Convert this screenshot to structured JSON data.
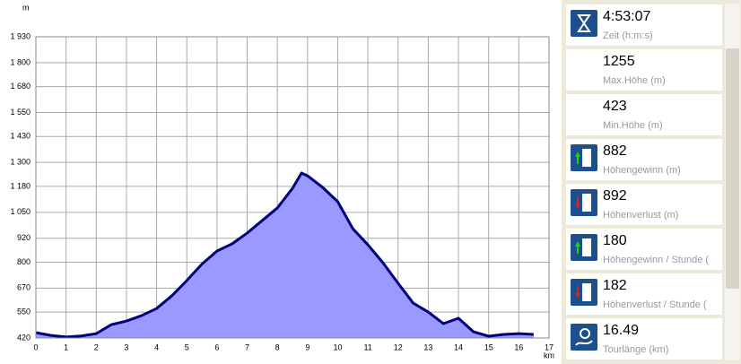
{
  "chart_data": {
    "type": "area",
    "y_unit": "m",
    "x_unit": "km",
    "x": [
      0,
      0.5,
      1,
      1.5,
      2,
      2.5,
      3,
      3.5,
      4,
      4.5,
      5,
      5.5,
      6,
      6.5,
      7,
      7.5,
      8,
      8.5,
      8.8,
      9,
      9.5,
      10,
      10.5,
      11,
      11.5,
      12,
      12.5,
      13,
      13.5,
      14,
      14.5,
      15,
      15.5,
      16,
      16.49
    ],
    "y": [
      447,
      433,
      425,
      430,
      442,
      487,
      505,
      532,
      568,
      631,
      708,
      790,
      856,
      892,
      946,
      1009,
      1072,
      1170,
      1247,
      1233,
      1175,
      1103,
      968,
      887,
      797,
      694,
      595,
      550,
      492,
      519,
      451,
      429,
      438,
      442,
      438
    ],
    "color": "#9999ff",
    "line_color": "#000080",
    "xlim": [
      0,
      17
    ],
    "xticks": [
      0,
      1,
      2,
      3,
      4,
      5,
      6,
      7,
      8,
      9,
      10,
      11,
      12,
      13,
      14,
      15,
      16,
      17
    ],
    "ylim": [
      420,
      1930
    ],
    "yticks": [
      420,
      550,
      670,
      800,
      920,
      {
        "value": 1050,
        "label": "1 050"
      },
      {
        "value": 1180,
        "label": "1 180"
      },
      {
        "value": 1300,
        "label": "1 300"
      },
      {
        "value": 1430,
        "label": "1 430"
      },
      {
        "value": 1550,
        "label": "1 550"
      },
      {
        "value": 1680,
        "label": "1 680"
      },
      {
        "value": 1800,
        "label": "1 800"
      },
      {
        "value": 1930,
        "label": "1 930"
      }
    ],
    "grid": true
  },
  "stats": [
    {
      "value": "4:53:07",
      "label": "Zeit (h:m:s)"
    },
    {
      "value": "1255",
      "label": "Max.Höhe (m)"
    },
    {
      "value": "423",
      "label": "Min.Höhe (m)"
    },
    {
      "value": "882",
      "label": "Höhengewinn (m)"
    },
    {
      "value": "892",
      "label": "Höhenverlust (m)"
    },
    {
      "value": "180",
      "label": "Höhengewinn  /  Stunde ("
    },
    {
      "value": "182",
      "label": "Höhenverlust  /  Stunde ("
    },
    {
      "value": "16.49",
      "label": "Tourlänge (km)"
    }
  ]
}
